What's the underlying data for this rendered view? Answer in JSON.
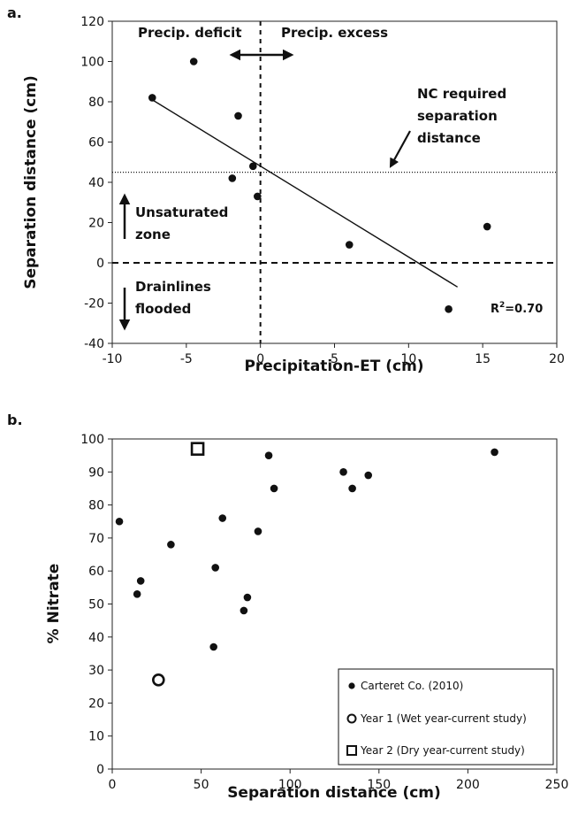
{
  "chart_data": [
    {
      "panel_label": "a.",
      "type": "scatter",
      "xlabel": "Precipitation-ET (cm)",
      "ylabel": "Separation distance (cm)",
      "xlim": [
        -10,
        20
      ],
      "ylim": [
        -40,
        120
      ],
      "xticks": [
        "-10",
        "-5",
        "0",
        "5",
        "10",
        "15",
        "20"
      ],
      "yticks": [
        "-40",
        "-20",
        "0",
        "20",
        "40",
        "60",
        "80",
        "100",
        "120"
      ],
      "grid": false,
      "points": [
        {
          "x": -7.3,
          "y": 82
        },
        {
          "x": -4.5,
          "y": 100
        },
        {
          "x": -1.5,
          "y": 73
        },
        {
          "x": -0.5,
          "y": 48
        },
        {
          "x": -1.9,
          "y": 42
        },
        {
          "x": -0.2,
          "y": 33
        },
        {
          "x": 6.0,
          "y": 9
        },
        {
          "x": 15.3,
          "y": 18
        },
        {
          "x": 12.7,
          "y": -23
        }
      ],
      "trendline": {
        "x": [
          -7.3,
          13.3
        ],
        "y": [
          81,
          -12
        ],
        "label_prefix": "R",
        "label_superscript": "2",
        "label_value": "=0.70"
      },
      "reference_lines": {
        "horizontal_dashed_y": 0,
        "vertical_dashed_x": 0,
        "required_separation_y": 45
      },
      "annotations": {
        "precip_deficit": "Precip. deficit",
        "precip_excess": "Precip. excess",
        "nc_required_line1": "NC required",
        "nc_required_line2": "separation",
        "nc_required_line3": "distance",
        "unsaturated_line1": "Unsaturated",
        "unsaturated_line2": "zone",
        "drainlines_line1": "Drainlines",
        "drainlines_line2": "flooded"
      }
    },
    {
      "panel_label": "b.",
      "type": "scatter",
      "xlabel": "Separation distance (cm)",
      "ylabel": "% Nitrate",
      "xlim": [
        0,
        250
      ],
      "ylim": [
        0,
        100
      ],
      "xticks": [
        "0",
        "50",
        "100",
        "150",
        "200",
        "250"
      ],
      "yticks": [
        "0",
        "10",
        "20",
        "30",
        "40",
        "50",
        "60",
        "70",
        "80",
        "90",
        "100"
      ],
      "grid": false,
      "legend_position": "bottom-right",
      "series": [
        {
          "name": "Carteret Co. (2010)",
          "marker": "filled-circle",
          "points": [
            {
              "x": 4,
              "y": 75
            },
            {
              "x": 14,
              "y": 53
            },
            {
              "x": 16,
              "y": 57
            },
            {
              "x": 33,
              "y": 68
            },
            {
              "x": 57,
              "y": 37
            },
            {
              "x": 58,
              "y": 61
            },
            {
              "x": 62,
              "y": 76
            },
            {
              "x": 74,
              "y": 48
            },
            {
              "x": 76,
              "y": 52
            },
            {
              "x": 82,
              "y": 72
            },
            {
              "x": 88,
              "y": 95
            },
            {
              "x": 91,
              "y": 85
            },
            {
              "x": 130,
              "y": 90
            },
            {
              "x": 135,
              "y": 85
            },
            {
              "x": 144,
              "y": 89
            },
            {
              "x": 215,
              "y": 96
            }
          ]
        },
        {
          "name": "Year 1 (Wet year-current study)",
          "marker": "open-circle",
          "points": [
            {
              "x": 26,
              "y": 27
            }
          ]
        },
        {
          "name": "Year 2 (Dry year-current study)",
          "marker": "open-square",
          "points": [
            {
              "x": 48,
              "y": 97
            }
          ]
        }
      ]
    }
  ]
}
